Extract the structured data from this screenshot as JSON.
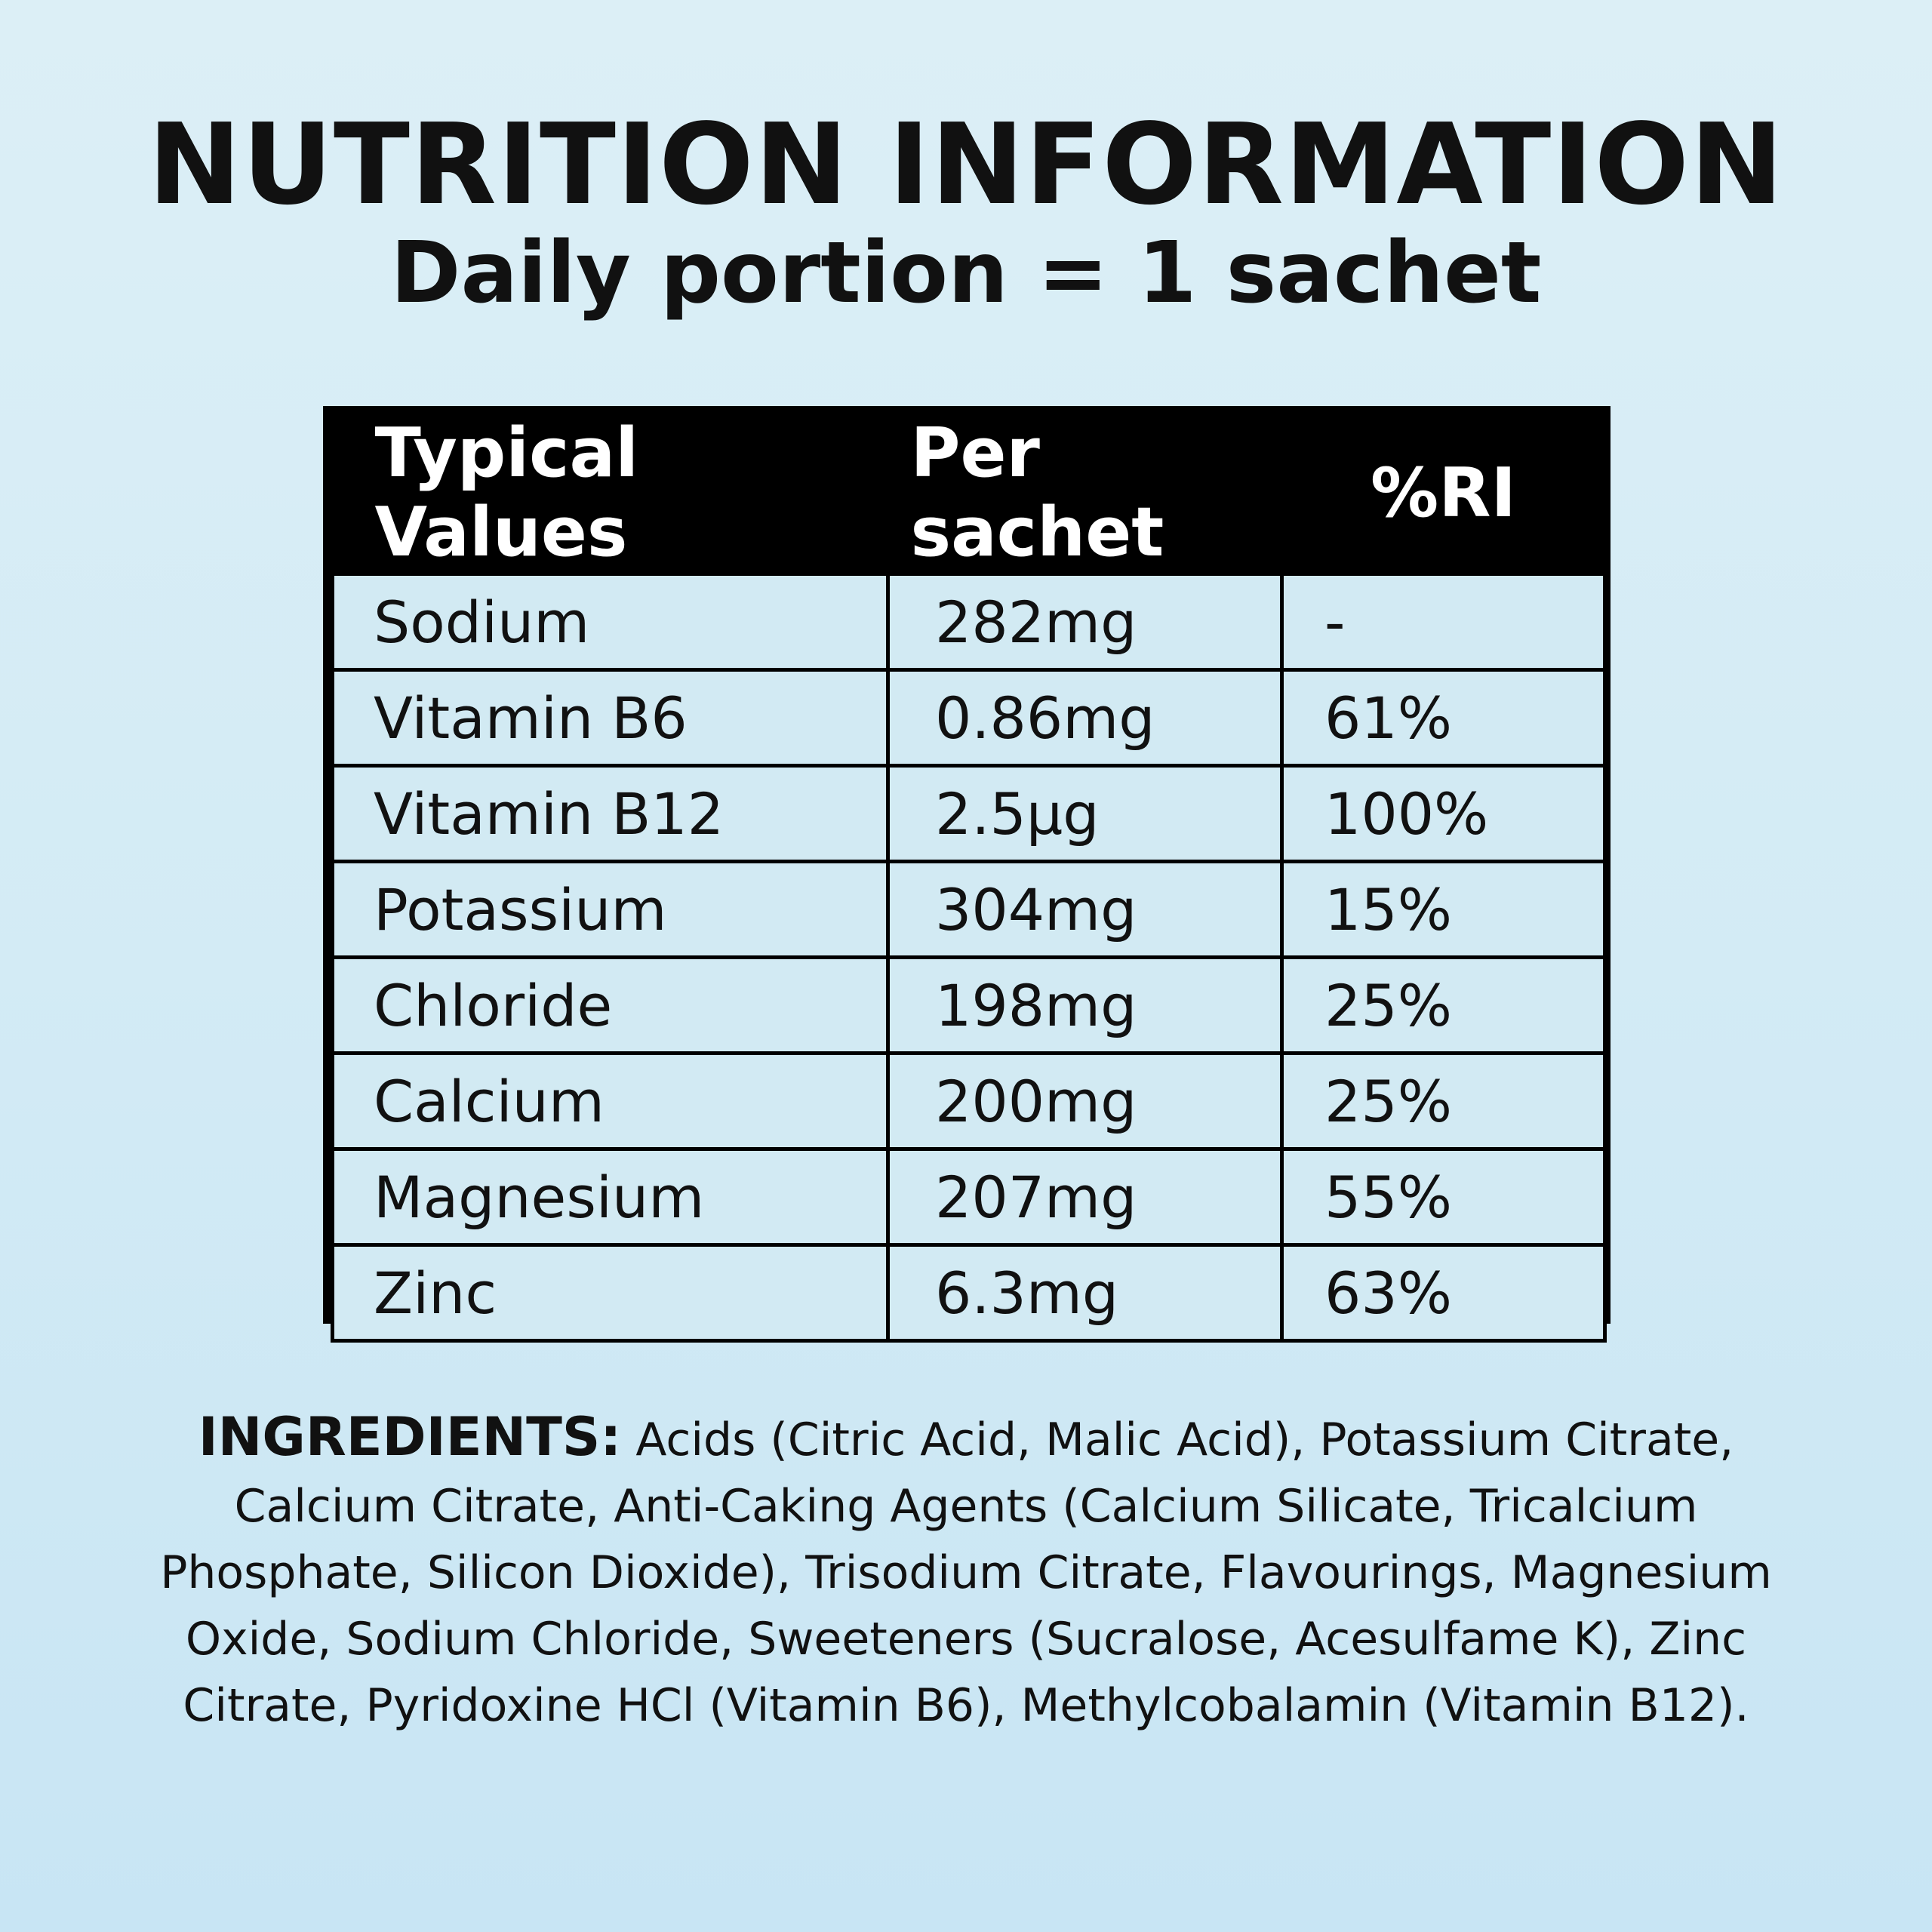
{
  "header": {
    "title": "NUTRITION INFORMATION",
    "subtitle": "Daily portion = 1 sachet"
  },
  "table": {
    "headers": [
      "Typical Values",
      "Per sachet",
      "%RI"
    ],
    "rows": [
      {
        "name": "Sodium",
        "per_sachet": "282mg",
        "ri": "-"
      },
      {
        "name": "Vitamin B6",
        "per_sachet": "0.86mg",
        "ri": "61%"
      },
      {
        "name": "Vitamin B12",
        "per_sachet": "2.5μg",
        "ri": "100%"
      },
      {
        "name": "Potassium",
        "per_sachet": "304mg",
        "ri": "15%"
      },
      {
        "name": "Chloride",
        "per_sachet": "198mg",
        "ri": "25%"
      },
      {
        "name": "Calcium",
        "per_sachet": "200mg",
        "ri": "25%"
      },
      {
        "name": "Magnesium",
        "per_sachet": "207mg",
        "ri": "55%"
      },
      {
        "name": "Zinc",
        "per_sachet": "6.3mg",
        "ri": "63%"
      }
    ]
  },
  "ingredients": {
    "label": "INGREDIENTS:",
    "text": "Acids (Citric Acid, Malic Acid), Potassium Citrate, Calcium Citrate, Anti-Caking Agents (Calcium Silicate, Tricalcium Phosphate, Silicon Dioxide), Trisodium Citrate, Flavourings, Magnesium Oxide, Sodium Chloride, Sweeteners (Sucralose, Acesulfame K), Zinc Citrate, Pyridoxine HCl (Vitamin B6), Methylcobalamin (Vitamin B12)."
  },
  "colors": {
    "background_top": "#dceff6",
    "background_bottom": "#c8e5f4",
    "table_header_bg": "#000000",
    "table_header_text": "#ffffff",
    "text": "#111111"
  }
}
